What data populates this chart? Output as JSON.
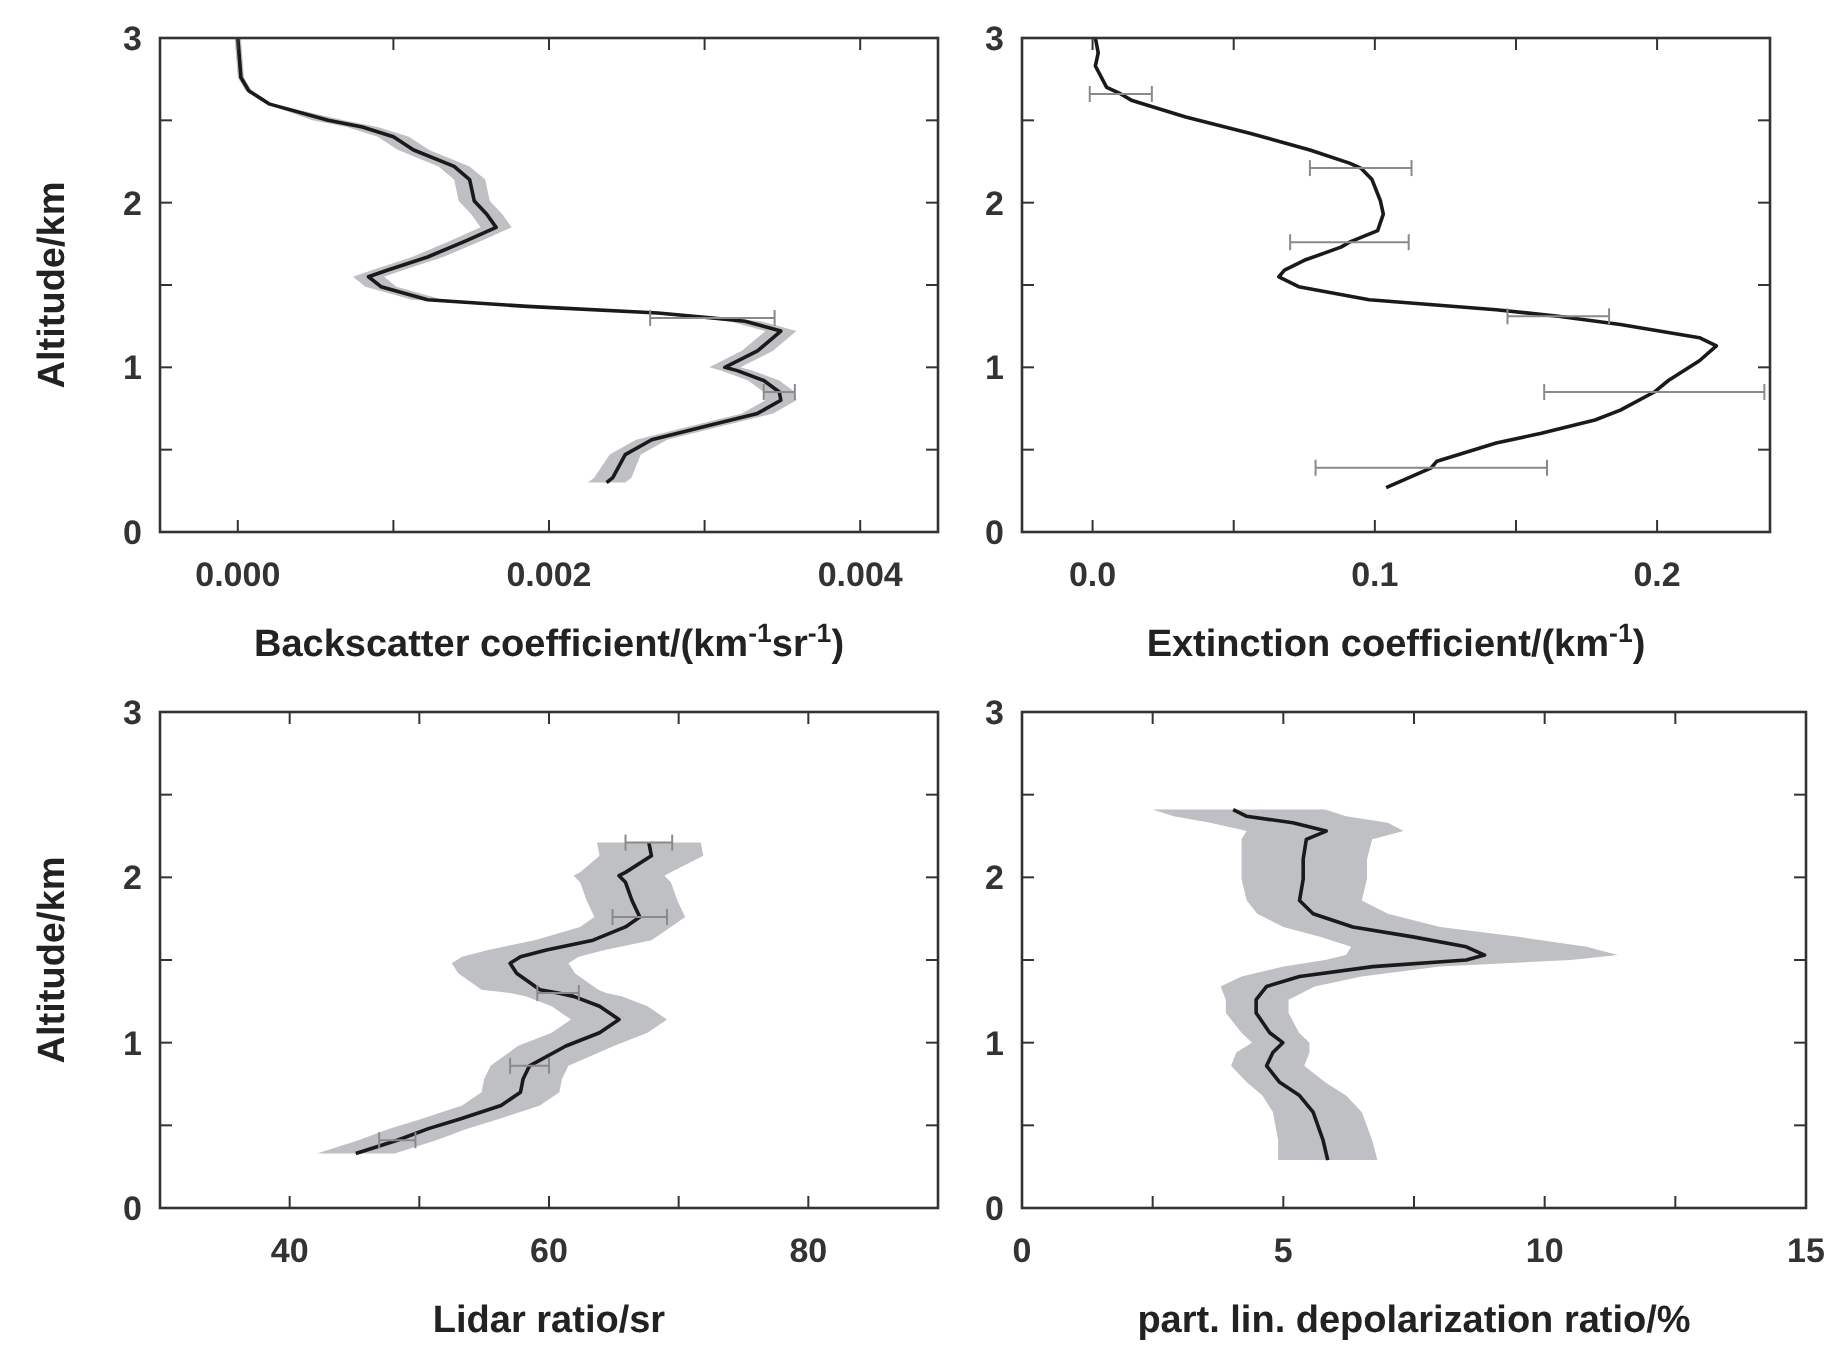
{
  "chart_data": [
    {
      "type": "line",
      "orientation": "horizontal",
      "xlabel": "Backscatter coefficient/(km$^{-1}$sr$^{-1}$)",
      "ylabel": "Altitude/km",
      "xlim": [
        -0.0005,
        0.0045
      ],
      "xticks": [
        "0.000",
        {
          "value": 0.001,
          "label": null
        },
        {
          "value": 0.002,
          "label": "0.002"
        },
        {
          "value": 0.003,
          "label": null
        },
        {
          "value": 0.004,
          "label": "0.004"
        }
      ],
      "ylim": [
        0,
        3
      ],
      "yticks": [
        0,
        {
          "value": 0.5,
          "label": null
        },
        1,
        {
          "value": 1.5,
          "label": null
        },
        2,
        {
          "value": 2.5,
          "label": null
        },
        3
      ],
      "series": [
        {
          "color": "#1a1a1a",
          "x": [
            3.0,
            2.76,
            2.68,
            2.6,
            2.5,
            2.46,
            2.4,
            2.32,
            2.22,
            2.14,
            2.01,
            1.93,
            1.85,
            1.77,
            1.67,
            1.59,
            1.55,
            1.49,
            1.41,
            1.37,
            1.33,
            1.3,
            1.28,
            1.22,
            1.1,
            1.0,
            0.98,
            0.92,
            0.85,
            0.8,
            0.72,
            0.64,
            0.56,
            0.47,
            0.33,
            0.3
          ],
          "values": [
            0,
            2e-05,
            7e-05,
            0.0002,
            0.00058,
            0.0008,
            0.001,
            0.00113,
            0.00139,
            0.00149,
            0.00152,
            0.0016,
            0.00166,
            0.00147,
            0.00122,
            0.00096,
            0.00084,
            0.00092,
            0.00122,
            0.00186,
            0.0027,
            0.00305,
            0.00326,
            0.00349,
            0.00334,
            0.00313,
            0.00321,
            0.00338,
            0.00348,
            0.00349,
            0.00334,
            0.003,
            0.00266,
            0.00249,
            0.00241,
            0.00237
          ],
          "lower": [
            -2e-05,
            0,
            5e-05,
            0.00018,
            0.00048,
            0.0007,
            0.0009,
            0.00103,
            0.00129,
            0.00139,
            0.00142,
            0.0015,
            0.00156,
            0.00137,
            0.00112,
            0.00086,
            0.00074,
            0.00082,
            0.00112,
            0.00176,
            0.0026,
            0.00295,
            0.00316,
            0.00339,
            0.00324,
            0.00303,
            0.00311,
            0.00328,
            0.00338,
            0.00339,
            0.00324,
            0.0029,
            0.00256,
            0.00239,
            0.00229,
            0.00225
          ],
          "upper": [
            2e-05,
            4e-05,
            9e-05,
            0.00022,
            0.00068,
            0.0009,
            0.0011,
            0.00123,
            0.00149,
            0.00159,
            0.00162,
            0.0017,
            0.00176,
            0.00157,
            0.00132,
            0.00106,
            0.00094,
            0.00102,
            0.00132,
            0.00196,
            0.0028,
            0.00315,
            0.00336,
            0.00359,
            0.00344,
            0.00323,
            0.00331,
            0.00348,
            0.00358,
            0.00359,
            0.00344,
            0.0031,
            0.00276,
            0.00259,
            0.00253,
            0.00249
          ],
          "errors": [
            null,
            null,
            null,
            null,
            null,
            null,
            null,
            null,
            null,
            null,
            null,
            null,
            null,
            null,
            null,
            null,
            null,
            null,
            null,
            null,
            null,
            0.0004,
            null,
            null,
            null,
            null,
            null,
            null,
            0.0001,
            null,
            null,
            null,
            null,
            null,
            null,
            null
          ]
        }
      ]
    },
    {
      "type": "line",
      "orientation": "horizontal",
      "xlabel": "Extinction coefficient/(km$^{-1}$)",
      "xlim": [
        -0.025,
        0.24
      ],
      "xticks": [
        "0.0",
        {
          "value": 0.05,
          "label": null
        },
        {
          "value": 0.1,
          "label": "0.1"
        },
        {
          "value": 0.15,
          "label": null
        },
        {
          "value": 0.2,
          "label": "0.2"
        }
      ],
      "ylim": [
        0,
        3
      ],
      "yticks": [
        0,
        {
          "value": 0.5,
          "label": null
        },
        1,
        {
          "value": 1.5,
          "label": null
        },
        2,
        {
          "value": 2.5,
          "label": null
        },
        3
      ],
      "series": [
        {
          "color": "#1a1a1a",
          "x": [
            3.0,
            2.91,
            2.83,
            2.7,
            2.66,
            2.62,
            2.52,
            2.42,
            2.32,
            2.24,
            2.21,
            2.14,
            2.01,
            1.93,
            1.83,
            1.76,
            1.73,
            1.65,
            1.59,
            1.55,
            1.49,
            1.41,
            1.35,
            1.31,
            1.26,
            1.18,
            1.13,
            1.04,
            0.92,
            0.85,
            0.74,
            0.68,
            0.6,
            0.54,
            0.43,
            0.39,
            0.27
          ],
          "values": [
            0.001,
            0.002,
            0.001,
            0.005,
            0.01,
            0.014,
            0.033,
            0.056,
            0.077,
            0.091,
            0.095,
            0.099,
            0.102,
            0.103,
            0.101,
            0.091,
            0.088,
            0.075,
            0.068,
            0.066,
            0.073,
            0.098,
            0.143,
            0.165,
            0.187,
            0.215,
            0.221,
            0.215,
            0.204,
            0.199,
            0.187,
            0.178,
            0.159,
            0.143,
            0.122,
            0.12,
            0.104
          ],
          "errors": [
            null,
            null,
            null,
            null,
            0.011,
            null,
            null,
            null,
            null,
            null,
            0.018,
            null,
            null,
            null,
            null,
            0.021,
            null,
            null,
            null,
            null,
            null,
            null,
            null,
            0.018,
            null,
            null,
            null,
            null,
            null,
            0.039,
            null,
            null,
            null,
            null,
            null,
            0.041,
            null
          ]
        }
      ]
    },
    {
      "type": "line",
      "orientation": "horizontal",
      "xlabel": "Lidar ratio/sr",
      "ylabel": "Altitude/km",
      "xlim": [
        30,
        90
      ],
      "xticks": [
        40,
        {
          "value": 50,
          "label": null
        },
        60,
        {
          "value": 70,
          "label": null
        },
        80
      ],
      "ylim": [
        0,
        3
      ],
      "yticks": [
        0,
        {
          "value": 0.5,
          "label": null
        },
        1,
        {
          "value": 1.5,
          "label": null
        },
        2,
        {
          "value": 2.5,
          "label": null
        },
        3
      ],
      "series": [
        {
          "color": "#1a1a1a",
          "x": [
            2.21,
            2.13,
            2.03,
            2.01,
            1.97,
            1.86,
            1.76,
            1.7,
            1.62,
            1.56,
            1.52,
            1.48,
            1.42,
            1.32,
            1.3,
            1.28,
            1.22,
            1.14,
            1.06,
            0.98,
            0.86,
            0.78,
            0.7,
            0.62,
            0.54,
            0.48,
            0.41,
            0.33
          ],
          "values": [
            67.7,
            67.9,
            65.9,
            65.4,
            65.9,
            66.4,
            67.0,
            65.9,
            63.4,
            59.8,
            57.8,
            57.0,
            57.5,
            59.3,
            60.7,
            61.9,
            63.9,
            65.4,
            63.9,
            61.3,
            58.5,
            58.0,
            57.8,
            56.3,
            53.2,
            50.7,
            48.3,
            45.1
          ],
          "lower": [
            63.7,
            63.9,
            62.4,
            61.9,
            62.4,
            62.9,
            63.5,
            62.4,
            58.9,
            55.3,
            53.3,
            52.5,
            53.0,
            54.8,
            57.0,
            58.2,
            60.2,
            61.7,
            60.2,
            57.6,
            55.5,
            55.0,
            54.8,
            53.3,
            50.2,
            47.7,
            45.3,
            42.1
          ],
          "upper": [
            71.7,
            71.9,
            69.4,
            68.9,
            69.4,
            69.9,
            70.5,
            69.4,
            67.9,
            64.3,
            62.3,
            61.5,
            62.0,
            63.8,
            64.4,
            65.6,
            67.6,
            69.1,
            67.6,
            65.0,
            61.5,
            61.0,
            60.8,
            59.3,
            56.2,
            53.7,
            51.3,
            48.1
          ],
          "errors": [
            1.8,
            null,
            null,
            null,
            null,
            null,
            2.1,
            null,
            null,
            null,
            null,
            null,
            null,
            null,
            1.6,
            null,
            null,
            null,
            null,
            null,
            1.5,
            null,
            null,
            null,
            null,
            null,
            1.4,
            null
          ]
        }
      ]
    },
    {
      "type": "line",
      "orientation": "horizontal",
      "xlabel": "part. lin. depolarization ratio/%",
      "xlim": [
        0,
        15
      ],
      "xticks": [
        0,
        {
          "value": 2.5,
          "label": null
        },
        5,
        {
          "value": 7.5,
          "label": null
        },
        10,
        {
          "value": 12.5,
          "label": null
        },
        15
      ],
      "ylim": [
        0,
        3
      ],
      "yticks": [
        0,
        {
          "value": 0.5,
          "label": null
        },
        1,
        {
          "value": 1.5,
          "label": null
        },
        2,
        {
          "value": 2.5,
          "label": null
        },
        3
      ],
      "series": [
        {
          "color": "#1a1a1a",
          "x": [
            2.41,
            2.37,
            2.33,
            2.28,
            2.23,
            2.11,
            1.99,
            1.86,
            1.78,
            1.7,
            1.64,
            1.58,
            1.53,
            1.5,
            1.46,
            1.4,
            1.34,
            1.26,
            1.18,
            1.06,
            1.0,
            0.94,
            0.86,
            0.76,
            0.68,
            0.58,
            0.41,
            0.29
          ],
          "values": [
            4.04,
            4.29,
            5.18,
            5.82,
            5.44,
            5.38,
            5.38,
            5.31,
            5.57,
            6.33,
            7.48,
            8.5,
            8.85,
            8.5,
            6.71,
            5.31,
            4.68,
            4.48,
            4.48,
            4.74,
            4.99,
            4.8,
            4.68,
            4.93,
            5.31,
            5.57,
            5.76,
            5.85
          ],
          "lower": [
            2.5,
            2.9,
            3.6,
            4.3,
            4.2,
            4.2,
            4.2,
            4.3,
            4.5,
            5.0,
            5.7,
            6.3,
            6.2,
            5.8,
            5.0,
            4.2,
            3.8,
            3.9,
            3.9,
            4.2,
            4.4,
            4.1,
            4.0,
            4.3,
            4.6,
            4.8,
            4.9,
            4.9
          ],
          "upper": [
            5.8,
            6.2,
            7.0,
            7.3,
            6.7,
            6.6,
            6.6,
            6.5,
            7.0,
            8.0,
            9.5,
            10.8,
            11.4,
            10.5,
            8.0,
            6.5,
            5.6,
            5.1,
            5.1,
            5.3,
            5.5,
            5.5,
            5.4,
            5.8,
            6.2,
            6.5,
            6.7,
            6.8
          ]
        }
      ]
    }
  ]
}
